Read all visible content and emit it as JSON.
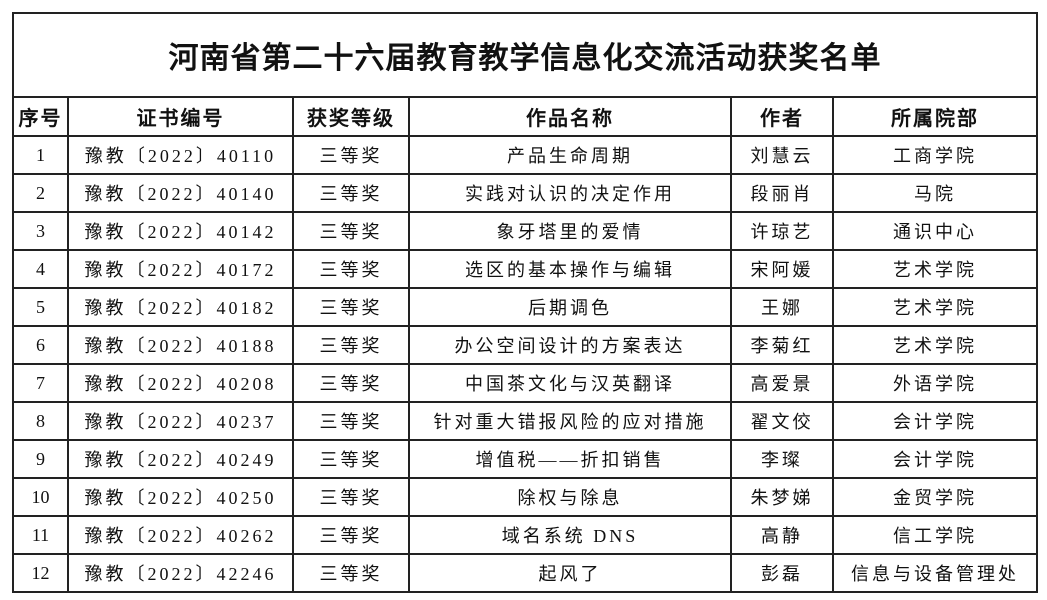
{
  "title": "河南省第二十六届教育教学信息化交流活动获奖名单",
  "headers": [
    "序号",
    "证书编号",
    "获奖等级",
    "作品名称",
    "作者",
    "所属院部"
  ],
  "rows": [
    [
      "1",
      "豫教〔2022〕40110",
      "三等奖",
      "产品生命周期",
      "刘慧云",
      "工商学院"
    ],
    [
      "2",
      "豫教〔2022〕40140",
      "三等奖",
      "实践对认识的决定作用",
      "段丽肖",
      "马院"
    ],
    [
      "3",
      "豫教〔2022〕40142",
      "三等奖",
      "象牙塔里的爱情",
      "许琼艺",
      "通识中心"
    ],
    [
      "4",
      "豫教〔2022〕40172",
      "三等奖",
      "选区的基本操作与编辑",
      "宋阿媛",
      "艺术学院"
    ],
    [
      "5",
      "豫教〔2022〕40182",
      "三等奖",
      "后期调色",
      "王娜",
      "艺术学院"
    ],
    [
      "6",
      "豫教〔2022〕40188",
      "三等奖",
      "办公空间设计的方案表达",
      "李菊红",
      "艺术学院"
    ],
    [
      "7",
      "豫教〔2022〕40208",
      "三等奖",
      "中国茶文化与汉英翻译",
      "高爱景",
      "外语学院"
    ],
    [
      "8",
      "豫教〔2022〕40237",
      "三等奖",
      "针对重大错报风险的应对措施",
      "翟文佼",
      "会计学院"
    ],
    [
      "9",
      "豫教〔2022〕40249",
      "三等奖",
      "增值税——折扣销售",
      "李璨",
      "会计学院"
    ],
    [
      "10",
      "豫教〔2022〕40250",
      "三等奖",
      "除权与除息",
      "朱梦娣",
      "金贸学院"
    ],
    [
      "11",
      "豫教〔2022〕40262",
      "三等奖",
      "域名系统 DNS",
      "高静",
      "信工学院"
    ],
    [
      "12",
      "豫教〔2022〕42246",
      "三等奖",
      "起风了",
      "彭磊",
      "信息与设备管理处"
    ]
  ]
}
